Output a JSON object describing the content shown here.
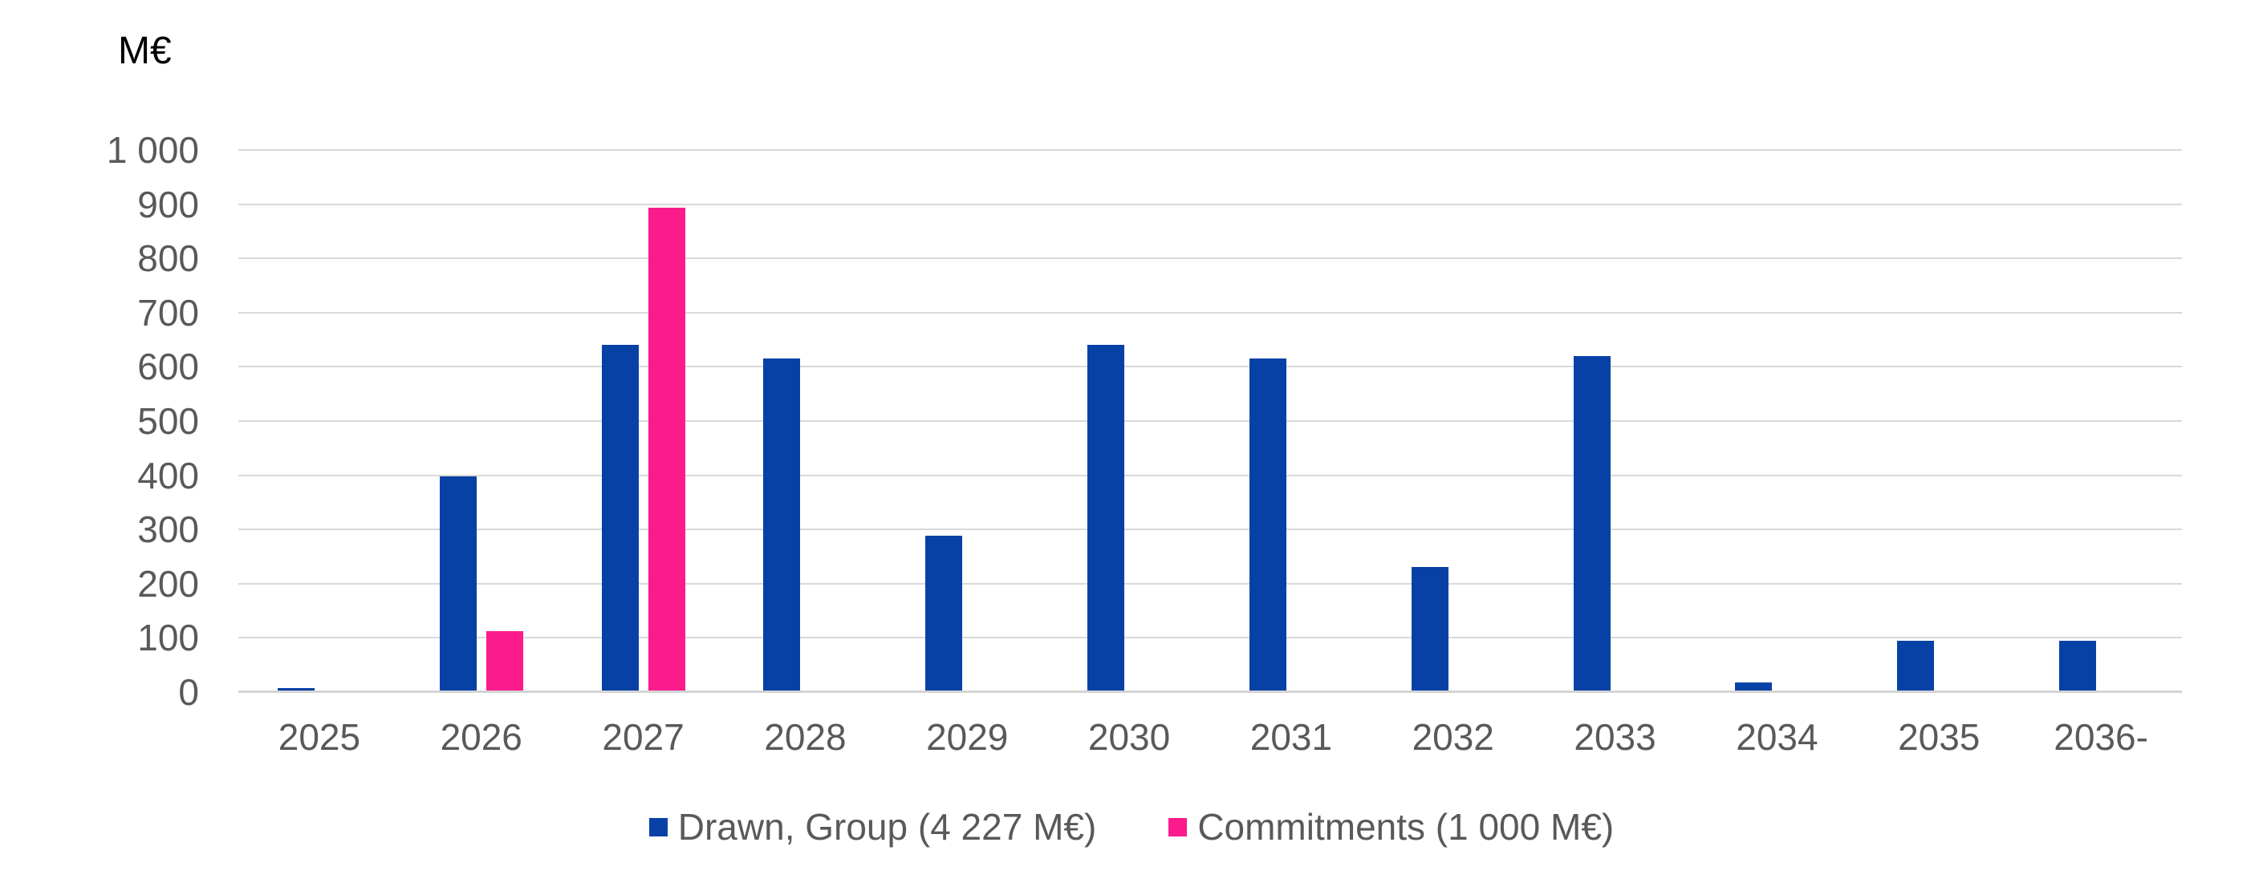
{
  "chart_data": {
    "type": "bar",
    "title": "",
    "ylabel": "M€",
    "xlabel": "",
    "ylim": [
      0,
      1000
    ],
    "ytick_step": 100,
    "grid": true,
    "legend_position": "bottom",
    "categories": [
      "2025",
      "2026",
      "2027",
      "2028",
      "2029",
      "2030",
      "2031",
      "2032",
      "2033",
      "2034",
      "2035",
      "2036-"
    ],
    "series": [
      {
        "name": "Drawn, Group (4 227 M€)",
        "key": "drawn-group",
        "color": "#0841a5",
        "values": [
          5,
          395,
          637,
          612,
          285,
          637,
          612,
          228,
          617,
          15,
          92,
          92
        ]
      },
      {
        "name": "Commitments (1 000 M€)",
        "key": "commitments",
        "color": "#fb1b8c",
        "values": [
          0,
          110,
          890,
          0,
          0,
          0,
          0,
          0,
          0,
          0,
          0,
          0
        ]
      }
    ],
    "yticks": [
      {
        "value": 1000,
        "label": "1 000"
      },
      {
        "value": 900,
        "label": "900"
      },
      {
        "value": 800,
        "label": "800"
      },
      {
        "value": 700,
        "label": "700"
      },
      {
        "value": 600,
        "label": "600"
      },
      {
        "value": 500,
        "label": "500"
      },
      {
        "value": 400,
        "label": "400"
      },
      {
        "value": 300,
        "label": "300"
      },
      {
        "value": 200,
        "label": "200"
      },
      {
        "value": 100,
        "label": "100"
      },
      {
        "value": 0,
        "label": "0"
      }
    ],
    "colors": {
      "gridline": "#d9d9d9",
      "axis_line": "#d4d4d4",
      "axis_text": "#595959",
      "unit_text": "#000000"
    }
  }
}
